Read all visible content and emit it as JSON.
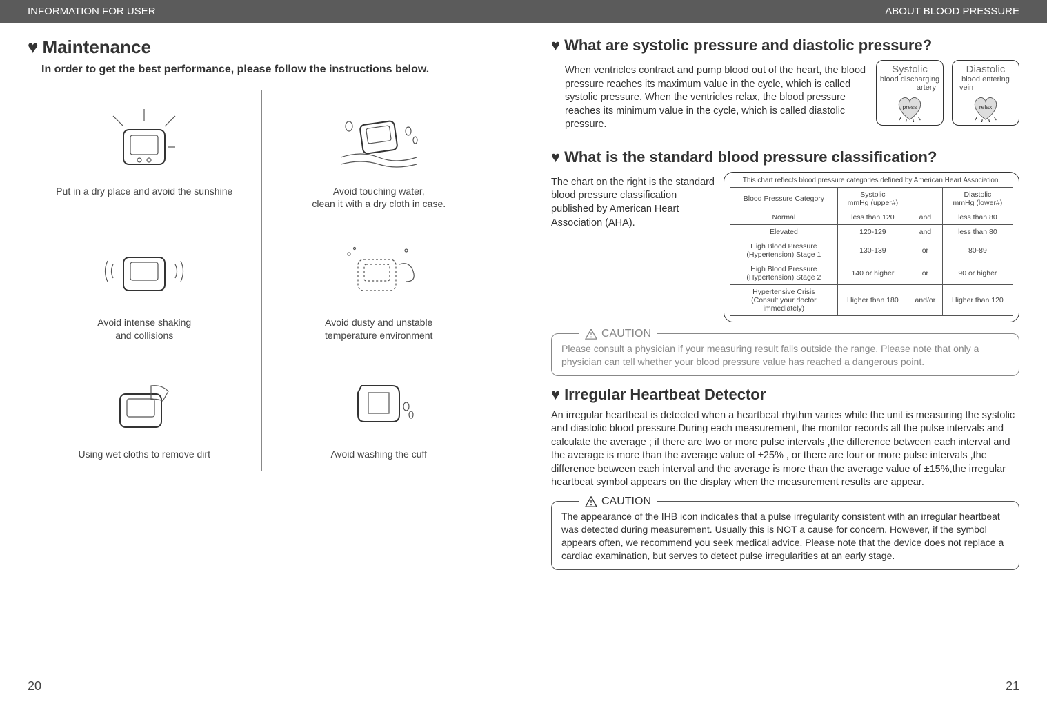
{
  "left": {
    "header": "INFORMATION FOR USER",
    "title": "Maintenance",
    "subtitle": "In order to get the best performance, please follow the instructions below.",
    "cells": [
      {
        "caption": "Put in a dry place and avoid the sunshine"
      },
      {
        "caption": "Avoid touching water,\nclean it with a dry cloth in case."
      },
      {
        "caption": "Avoid intense shaking\nand collisions"
      },
      {
        "caption": "Avoid dusty and unstable\ntemperature environment"
      },
      {
        "caption": "Using wet cloths to remove dirt"
      },
      {
        "caption": "Avoid washing the cuff"
      }
    ],
    "page_num": "20"
  },
  "right": {
    "header": "ABOUT BLOOD PRESSURE",
    "q1_title": "What are systolic pressure and diastolic pressure?",
    "q1_body": "When ventricles contract and pump blood out of the heart, the blood pressure reaches its maximum value in the cycle, which is called systolic pressure. When the ventricles relax, the blood pressure reaches its minimum value in the cycle, which is called diastolic pressure.",
    "systolic": {
      "title": "Systolic",
      "sub": "blood discharging",
      "sub2": "artery",
      "tag": "press"
    },
    "diastolic": {
      "title": "Diastolic",
      "sub": "blood entering",
      "sub2": "vein",
      "tag": "relax"
    },
    "q2_title": "What is the standard blood pressure classification?",
    "q2_body": "The chart on the right is the standard blood pressure classification published by American Heart Association (AHA).",
    "table_note": "This chart reflects blood pressure categories defined by American Heart Association.",
    "table": {
      "headers": {
        "cat": "Blood Pressure Category",
        "sys": "Systolic\nmmHg (upper#)",
        "conj": "",
        "dia": "Diastolic\nmmHg (lower#)"
      },
      "rows": [
        {
          "cat": "Normal",
          "sys": "less than 120",
          "conj": "and",
          "dia": "less than 80"
        },
        {
          "cat": "Elevated",
          "sys": "120-129",
          "conj": "and",
          "dia": "less than 80"
        },
        {
          "cat": "High Blood Pressure\n(Hypertension) Stage 1",
          "sys": "130-139",
          "conj": "or",
          "dia": "80-89"
        },
        {
          "cat": "High Blood Pressure\n(Hypertension) Stage 2",
          "sys": "140 or higher",
          "conj": "or",
          "dia": "90 or higher"
        },
        {
          "cat": "Hypertensive Crisis\n(Consult your doctor immediately)",
          "sys": "Higher than 180",
          "conj": "and/or",
          "dia": "Higher than 120"
        }
      ]
    },
    "caution1_label": "CAUTION",
    "caution1_body": "Please consult a physician if your measuring result falls outside the range. Please note that only a physician can tell whether your blood pressure value has reached a dangerous point.",
    "ihb_title": "Irregular Heartbeat Detector",
    "ihb_body": "An irregular heartbeat is detected when a heartbeat rhythm varies while the unit is measuring the systolic and diastolic blood pressure.During each measurement, the monitor records all the pulse intervals and calculate the average ; if there are two or more pulse intervals ,the difference between each interval and the average is more than the average value of ±25% , or there are four or more pulse intervals ,the difference between each interval and the average is more than the average value of ±15%,the irregular heartbeat symbol appears on the display when the measurement results are appear.",
    "caution2_label": "CAUTION",
    "caution2_body": "The appearance of the IHB icon indicates that a pulse irregularity consistent with an irregular heartbeat was detected during measurement. Usually this is NOT a cause for concern. However, if the symbol appears often, we recommend you seek medical advice. Please note that the device does not replace a cardiac examination, but serves to detect pulse irregularities at an early stage.",
    "page_num": "21"
  }
}
